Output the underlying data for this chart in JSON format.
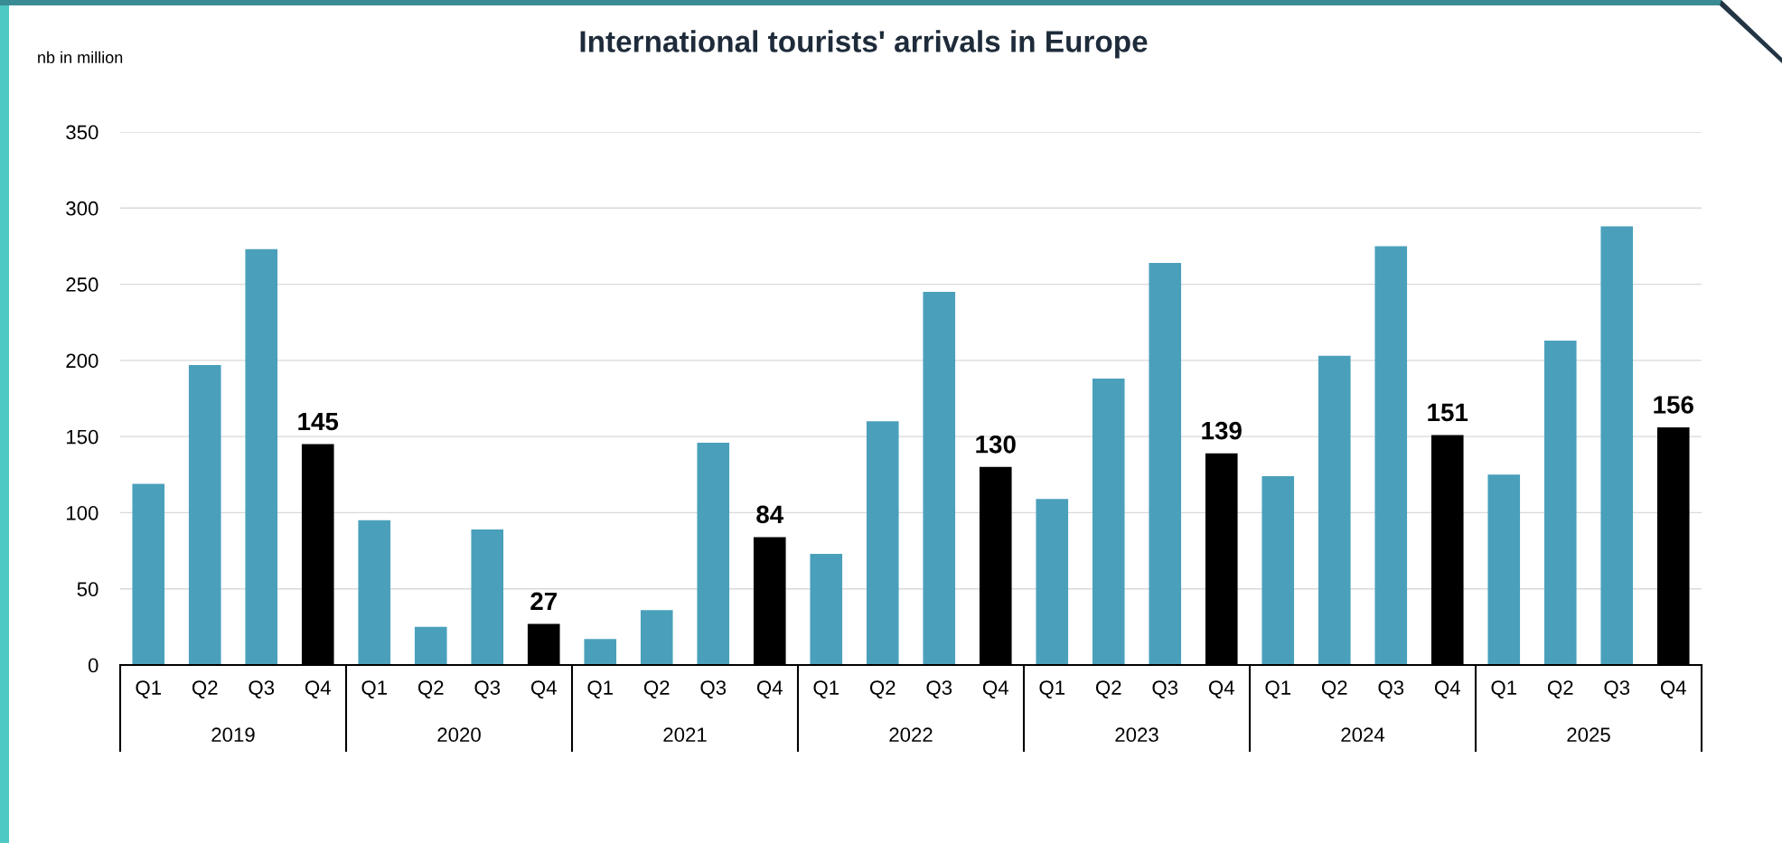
{
  "chart_data": {
    "type": "bar",
    "title": "International tourists' arrivals in Europe",
    "ylabel": "nb in million",
    "categories": [
      "Q1",
      "Q2",
      "Q3",
      "Q4",
      "Q1",
      "Q2",
      "Q3",
      "Q4",
      "Q1",
      "Q2",
      "Q3",
      "Q4",
      "Q1",
      "Q2",
      "Q3",
      "Q4",
      "Q1",
      "Q2",
      "Q3",
      "Q4",
      "Q1",
      "Q2",
      "Q3",
      "Q4",
      "Q1",
      "Q2",
      "Q3",
      "Q4"
    ],
    "values": [
      119,
      197,
      273,
      145,
      95,
      25,
      89,
      27,
      17,
      36,
      146,
      84,
      73,
      160,
      245,
      130,
      109,
      188,
      264,
      139,
      124,
      203,
      275,
      151,
      125,
      213,
      288,
      156
    ],
    "colors": [
      "#4aa0bb",
      "#4aa0bb",
      "#4aa0bb",
      "#000000",
      "#4aa0bb",
      "#4aa0bb",
      "#4aa0bb",
      "#000000",
      "#4aa0bb",
      "#4aa0bb",
      "#4aa0bb",
      "#000000",
      "#4aa0bb",
      "#4aa0bb",
      "#4aa0bb",
      "#000000",
      "#4aa0bb",
      "#4aa0bb",
      "#4aa0bb",
      "#000000",
      "#4aa0bb",
      "#4aa0bb",
      "#4aa0bb",
      "#000000",
      "#4aa0bb",
      "#4aa0bb",
      "#4aa0bb",
      "#000000"
    ],
    "value_labels": [
      null,
      null,
      null,
      "145",
      null,
      null,
      null,
      "27",
      null,
      null,
      null,
      "84",
      null,
      null,
      null,
      "130",
      null,
      null,
      null,
      "139",
      null,
      null,
      null,
      "151",
      null,
      null,
      null,
      "156"
    ],
    "annotations": [
      "2019",
      "2020",
      "2021",
      "2022",
      "2023",
      "2024",
      "2025"
    ],
    "ylim": [
      0,
      350
    ],
    "yticks": [
      0,
      50,
      100,
      150,
      200,
      250,
      300,
      350
    ],
    "grid": "y"
  }
}
